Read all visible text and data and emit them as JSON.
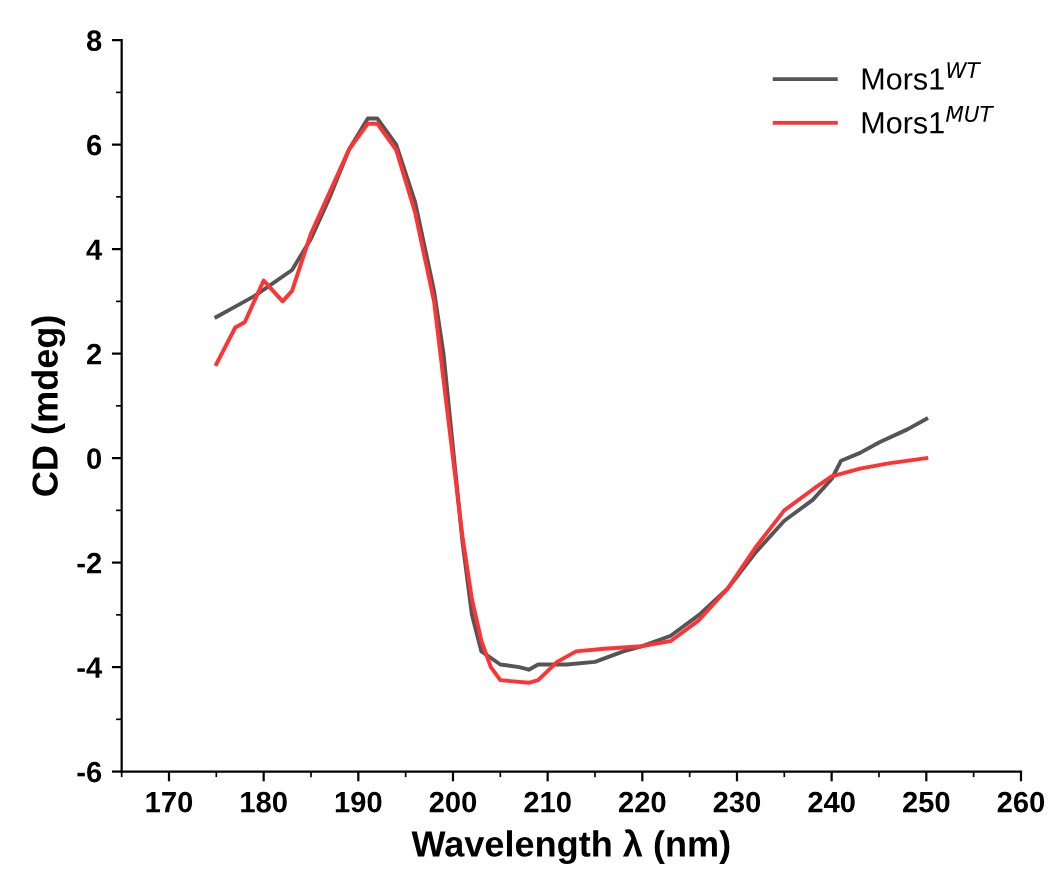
{
  "chart_data": {
    "type": "line",
    "xlabel": "Wavelength λ (nm)",
    "ylabel": "CD (mdeg)",
    "xlim": [
      165,
      260
    ],
    "xticks": [
      170,
      180,
      190,
      200,
      210,
      220,
      230,
      240,
      250,
      260
    ],
    "ylim": [
      -6,
      8
    ],
    "yticks": [
      -6,
      -4,
      -2,
      0,
      2,
      4,
      6,
      8
    ],
    "grid": false,
    "legend": "top right",
    "marker": "none",
    "line_style": "solid",
    "series": [
      {
        "name": "Mors1$^{WT}$",
        "color": "#555555",
        "x": [
          175,
          177,
          179,
          181,
          183,
          185,
          187,
          189,
          191,
          192,
          194,
          196,
          198,
          199,
          200,
          201,
          202,
          203,
          205,
          207,
          208,
          209,
          212,
          215,
          218,
          220,
          223,
          226,
          229,
          232,
          235,
          238,
          240,
          241,
          243,
          245,
          248,
          250
        ],
        "values": [
          2.7,
          2.9,
          3.1,
          3.35,
          3.6,
          4.2,
          5.0,
          5.9,
          6.5,
          6.5,
          6.0,
          4.9,
          3.2,
          2.0,
          0.2,
          -1.6,
          -3.0,
          -3.7,
          -3.95,
          -4.0,
          -4.05,
          -3.95,
          -3.95,
          -3.9,
          -3.7,
          -3.6,
          -3.4,
          -3.0,
          -2.5,
          -1.8,
          -1.2,
          -0.8,
          -0.4,
          -0.05,
          0.1,
          0.3,
          0.55,
          0.75
        ]
      },
      {
        "name": "Mors1$^{MUT}$",
        "color": "#ff3333",
        "x": [
          175,
          177,
          178,
          179,
          180,
          181,
          182,
          183,
          185,
          187,
          189,
          191,
          192,
          194,
          196,
          198,
          200,
          201,
          202,
          203,
          204,
          205,
          208,
          209,
          211,
          213,
          216,
          220,
          223,
          226,
          229,
          232,
          235,
          238,
          240,
          243,
          246,
          250
        ],
        "values": [
          1.8,
          2.5,
          2.6,
          3.0,
          3.4,
          3.2,
          3.0,
          3.2,
          4.3,
          5.1,
          5.9,
          6.4,
          6.4,
          5.9,
          4.7,
          3.0,
          0.0,
          -1.5,
          -2.7,
          -3.5,
          -4.0,
          -4.25,
          -4.3,
          -4.25,
          -3.9,
          -3.7,
          -3.65,
          -3.6,
          -3.5,
          -3.1,
          -2.5,
          -1.7,
          -1.0,
          -0.6,
          -0.35,
          -0.2,
          -0.1,
          0.0
        ]
      }
    ]
  }
}
